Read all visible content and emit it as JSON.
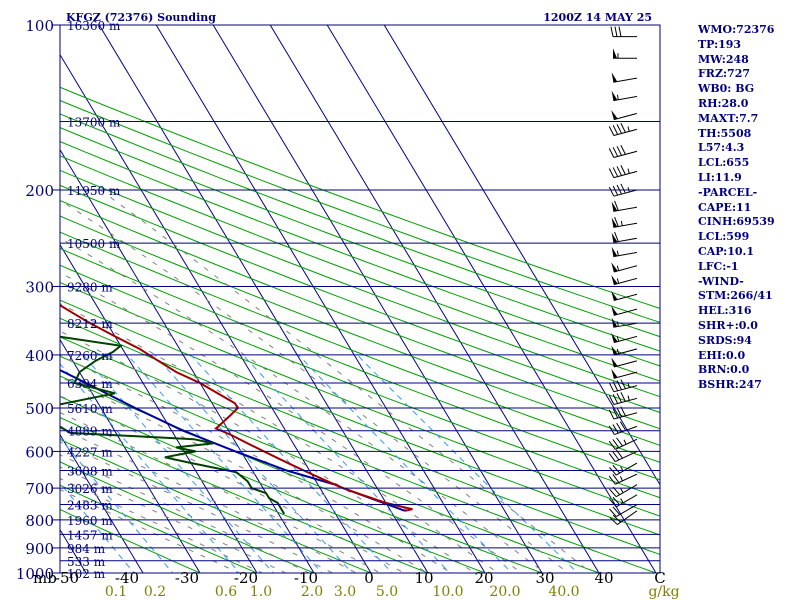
{
  "station": "KFGZ (72376) Sounding",
  "datetime": "1200Z 14 MAY 25",
  "colors": {
    "frame": "#000080",
    "isotherm": "#00008b",
    "dry_adiabat": "#00a000",
    "moist_adiabat": "#808080",
    "mixing_ratio": "#3399ff",
    "temperature": "#a00000",
    "dewpoint": "#004000",
    "parcel": "#0000a0",
    "mixing_label": "#808000"
  },
  "chart_data": {
    "type": "skew-t",
    "pressure_unit": "mb",
    "pressure_levels": [
      1000,
      900,
      800,
      700,
      600,
      500,
      400,
      300,
      200,
      100
    ],
    "pressure_labels": [
      "100",
      "200",
      "300",
      "400",
      "500",
      "600",
      "700",
      "800",
      "900",
      "1000"
    ],
    "height_levels": [
      {
        "p": 100,
        "label": "16360 m"
      },
      {
        "p": 150,
        "label": "13700 m"
      },
      {
        "p": 200,
        "label": "11950 m"
      },
      {
        "p": 250,
        "label": "10500 m"
      },
      {
        "p": 300,
        "label": "9280 m"
      },
      {
        "p": 350,
        "label": "8212 m"
      },
      {
        "p": 400,
        "label": "7260 m"
      },
      {
        "p": 450,
        "label": "6394 m"
      },
      {
        "p": 500,
        "label": "5610 m"
      },
      {
        "p": 550,
        "label": "4889 m"
      },
      {
        "p": 600,
        "label": "4227 m"
      },
      {
        "p": 650,
        "label": "3608 m"
      },
      {
        "p": 700,
        "label": "3026 m"
      },
      {
        "p": 750,
        "label": "2483 m"
      },
      {
        "p": 800,
        "label": "1960 m"
      },
      {
        "p": 850,
        "label": "1457 m"
      },
      {
        "p": 900,
        "label": "984 m"
      },
      {
        "p": 950,
        "label": "533 m"
      },
      {
        "p": 1000,
        "label": "102 m"
      }
    ],
    "temperature_axis_label": "mb",
    "temperature_ticks": [
      "-50",
      "-40",
      "-30",
      "-20",
      "-10",
      "0",
      "10",
      "20",
      "30",
      "40",
      "C"
    ],
    "mixing_ratio_labels": [
      "0.1",
      "0.2",
      "0.6",
      "1.0",
      "2.0",
      "3.0",
      "5.0",
      "10.0",
      "20.0",
      "40.0",
      "g/kg"
    ],
    "temperature_profile": [
      [
        770,
        12.5
      ],
      [
        765,
        14
      ],
      [
        755,
        12
      ],
      [
        745,
        10
      ],
      [
        730,
        8
      ],
      [
        715,
        6
      ],
      [
        700,
        4
      ],
      [
        680,
        2
      ],
      [
        660,
        0
      ],
      [
        640,
        -2
      ],
      [
        620,
        -4
      ],
      [
        600,
        -6
      ],
      [
        580,
        -8
      ],
      [
        560,
        -10
      ],
      [
        545,
        -12
      ],
      [
        530,
        -10
      ],
      [
        515,
        -8
      ],
      [
        500,
        -6
      ],
      [
        490,
        -6
      ],
      [
        470,
        -8
      ],
      [
        450,
        -10
      ],
      [
        430,
        -13
      ],
      [
        410,
        -15
      ],
      [
        390,
        -17
      ],
      [
        370,
        -20
      ],
      [
        350,
        -23
      ],
      [
        335,
        -25
      ],
      [
        320,
        -27
      ],
      [
        305,
        -30
      ],
      [
        290,
        -32
      ],
      [
        275,
        -36
      ],
      [
        260,
        -39
      ],
      [
        245,
        -42
      ],
      [
        235,
        -45
      ],
      [
        225,
        -48
      ],
      [
        215,
        -51
      ],
      [
        205,
        -54
      ],
      [
        190,
        -56
      ],
      [
        175,
        -56
      ],
      [
        165,
        -56
      ],
      [
        155,
        -58
      ],
      [
        145,
        -62
      ],
      [
        135,
        -64
      ],
      [
        125,
        -65
      ],
      [
        115,
        -67
      ],
      [
        108,
        -70
      ],
      [
        102,
        -72
      ],
      [
        100,
        -73
      ]
    ],
    "dewpoint_profile": [
      [
        780,
        -9
      ],
      [
        765,
        -9
      ],
      [
        745,
        -9
      ],
      [
        730,
        -10
      ],
      [
        715,
        -10
      ],
      [
        700,
        -12
      ],
      [
        680,
        -12
      ],
      [
        655,
        -13
      ],
      [
        630,
        -20
      ],
      [
        615,
        -24
      ],
      [
        600,
        -18
      ],
      [
        590,
        -21
      ],
      [
        580,
        -14
      ],
      [
        570,
        -17
      ],
      [
        555,
        -38
      ],
      [
        530,
        -40
      ],
      [
        510,
        -45
      ],
      [
        495,
        -38
      ],
      [
        470,
        -26
      ],
      [
        450,
        -32
      ],
      [
        430,
        -30
      ],
      [
        410,
        -26
      ],
      [
        395,
        -22
      ],
      [
        385,
        -20
      ],
      [
        370,
        -30
      ],
      [
        350,
        -40
      ],
      [
        330,
        -44
      ],
      [
        315,
        -43
      ],
      [
        300,
        -46
      ],
      [
        285,
        -40
      ],
      [
        270,
        -36
      ],
      [
        255,
        -44
      ],
      [
        240,
        -50
      ],
      [
        225,
        -52
      ],
      [
        210,
        -56
      ],
      [
        195,
        -56
      ],
      [
        180,
        -60
      ],
      [
        168,
        -63
      ],
      [
        160,
        -62
      ],
      [
        150,
        -67
      ],
      [
        140,
        -70
      ],
      [
        130,
        -69
      ],
      [
        120,
        -73
      ],
      [
        112,
        -76
      ],
      [
        108,
        -76
      ],
      [
        100,
        -78
      ]
    ],
    "parcel_profile": [
      [
        770,
        12.5
      ],
      [
        700,
        4
      ],
      [
        690,
        3
      ],
      [
        650,
        -4
      ],
      [
        600,
        -11
      ],
      [
        550,
        -18
      ],
      [
        500,
        -24
      ],
      [
        450,
        -30
      ],
      [
        400,
        -37
      ],
      [
        350,
        -44
      ],
      [
        300,
        -52
      ],
      [
        250,
        -61
      ],
      [
        200,
        -69
      ],
      [
        150,
        -77
      ],
      [
        100,
        -89
      ]
    ],
    "wind_barbs": [
      {
        "p": 105,
        "dir": 270,
        "spd": 30
      },
      {
        "p": 115,
        "dir": 270,
        "spd": 55
      },
      {
        "p": 125,
        "dir": 260,
        "spd": 50
      },
      {
        "p": 135,
        "dir": 260,
        "spd": 55
      },
      {
        "p": 145,
        "dir": 255,
        "spd": 50
      },
      {
        "p": 155,
        "dir": 255,
        "spd": 45
      },
      {
        "p": 170,
        "dir": 255,
        "spd": 40
      },
      {
        "p": 185,
        "dir": 255,
        "spd": 45
      },
      {
        "p": 200,
        "dir": 255,
        "spd": 45
      },
      {
        "p": 215,
        "dir": 260,
        "spd": 60
      },
      {
        "p": 230,
        "dir": 260,
        "spd": 65
      },
      {
        "p": 245,
        "dir": 260,
        "spd": 60
      },
      {
        "p": 260,
        "dir": 260,
        "spd": 55
      },
      {
        "p": 275,
        "dir": 255,
        "spd": 55
      },
      {
        "p": 290,
        "dir": 255,
        "spd": 55
      },
      {
        "p": 310,
        "dir": 255,
        "spd": 50
      },
      {
        "p": 330,
        "dir": 255,
        "spd": 50
      },
      {
        "p": 350,
        "dir": 260,
        "spd": 55
      },
      {
        "p": 370,
        "dir": 255,
        "spd": 55
      },
      {
        "p": 390,
        "dir": 255,
        "spd": 55
      },
      {
        "p": 410,
        "dir": 255,
        "spd": 50
      },
      {
        "p": 430,
        "dir": 255,
        "spd": 50
      },
      {
        "p": 455,
        "dir": 255,
        "spd": 45
      },
      {
        "p": 480,
        "dir": 255,
        "spd": 45
      },
      {
        "p": 510,
        "dir": 255,
        "spd": 40
      },
      {
        "p": 540,
        "dir": 250,
        "spd": 40
      },
      {
        "p": 570,
        "dir": 245,
        "spd": 35
      },
      {
        "p": 600,
        "dir": 245,
        "spd": 30
      },
      {
        "p": 630,
        "dir": 240,
        "spd": 25
      },
      {
        "p": 660,
        "dir": 245,
        "spd": 25
      },
      {
        "p": 690,
        "dir": 240,
        "spd": 25
      },
      {
        "p": 720,
        "dir": 240,
        "spd": 25
      },
      {
        "p": 750,
        "dir": 240,
        "spd": 20
      },
      {
        "p": 770,
        "dir": 235,
        "spd": 20
      }
    ]
  },
  "stats": [
    "WMO:72376",
    "TP:193",
    "MW:248",
    "FRZ:727",
    "WB0: BG",
    "RH:28.0",
    "MAXT:7.7",
    "TH:5508",
    "L57:4.3",
    "LCL:655",
    "LI:11.9",
    "-PARCEL-",
    "CAPE:11",
    "CINH:69539",
    "LCL:599",
    "CAP:10.1",
    "LFC:-1",
    "-WIND-",
    "STM:266/41",
    "HEL:316",
    "SHR+:0.0",
    "SRDS:94",
    "EHI:0.0",
    "BRN:0.0",
    "BSHR:247"
  ]
}
